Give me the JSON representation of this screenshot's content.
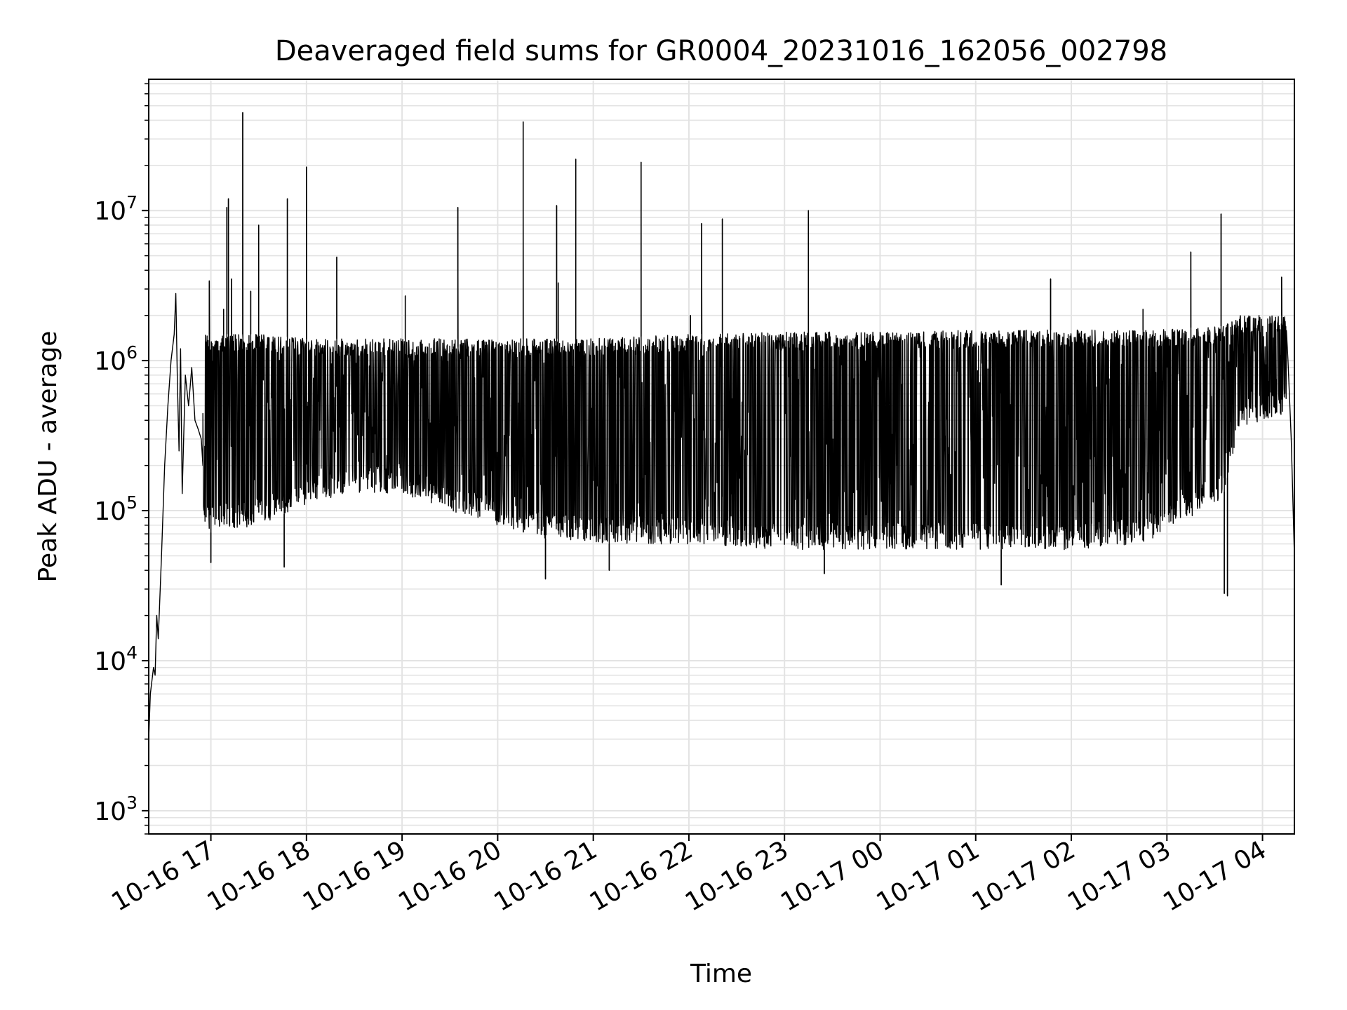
{
  "chart_data": {
    "type": "line",
    "title": "Deaveraged field sums for GR0004_20231016_162056_002798",
    "xlabel": "Time",
    "ylabel": "Peak ADU - average",
    "yscale": "log",
    "ylim": [
      700,
      75000000
    ],
    "xlim": [
      "2023-10-16T16:21",
      "2023-10-17T04:20"
    ],
    "grid": {
      "major": true,
      "minor_y": true
    },
    "line_color": "#000000",
    "grid_color": "#e3e3e3",
    "x_ticks": [
      {
        "time": "2023-10-16T17:00",
        "label": "10-16 17"
      },
      {
        "time": "2023-10-16T18:00",
        "label": "10-16 18"
      },
      {
        "time": "2023-10-16T19:00",
        "label": "10-16 19"
      },
      {
        "time": "2023-10-16T20:00",
        "label": "10-16 20"
      },
      {
        "time": "2023-10-16T21:00",
        "label": "10-16 21"
      },
      {
        "time": "2023-10-16T22:00",
        "label": "10-16 22"
      },
      {
        "time": "2023-10-16T23:00",
        "label": "10-16 23"
      },
      {
        "time": "2023-10-17T00:00",
        "label": "10-17 00"
      },
      {
        "time": "2023-10-17T01:00",
        "label": "10-17 01"
      },
      {
        "time": "2023-10-17T02:00",
        "label": "10-17 02"
      },
      {
        "time": "2023-10-17T03:00",
        "label": "10-17 03"
      },
      {
        "time": "2023-10-17T04:00",
        "label": "10-17 04"
      }
    ],
    "y_ticks": [
      {
        "value": 1000,
        "base": "10",
        "exp": "3"
      },
      {
        "value": 10000,
        "base": "10",
        "exp": "4"
      },
      {
        "value": 100000,
        "base": "10",
        "exp": "5"
      },
      {
        "value": 1000000,
        "base": "10",
        "exp": "6"
      },
      {
        "value": 10000000,
        "base": "10",
        "exp": "7"
      }
    ],
    "envelope": [
      {
        "time": "2023-10-16T16:55",
        "low": 70000,
        "high": 1500000
      },
      {
        "time": "2023-10-16T17:30",
        "low": 80000,
        "high": 1500000
      },
      {
        "time": "2023-10-16T18:00",
        "low": 110000,
        "high": 1400000
      },
      {
        "time": "2023-10-16T18:30",
        "low": 130000,
        "high": 1400000
      },
      {
        "time": "2023-10-16T19:00",
        "low": 130000,
        "high": 1400000
      },
      {
        "time": "2023-10-16T19:30",
        "low": 100000,
        "high": 1400000
      },
      {
        "time": "2023-10-16T20:00",
        "low": 80000,
        "high": 1400000
      },
      {
        "time": "2023-10-16T20:30",
        "low": 65000,
        "high": 1400000
      },
      {
        "time": "2023-10-16T21:00",
        "low": 60000,
        "high": 1400000
      },
      {
        "time": "2023-10-16T22:00",
        "low": 60000,
        "high": 1500000
      },
      {
        "time": "2023-10-16T23:00",
        "low": 55000,
        "high": 1550000
      },
      {
        "time": "2023-10-17T00:00",
        "low": 55000,
        "high": 1550000
      },
      {
        "time": "2023-10-17T01:00",
        "low": 55000,
        "high": 1600000
      },
      {
        "time": "2023-10-17T02:00",
        "low": 55000,
        "high": 1600000
      },
      {
        "time": "2023-10-17T02:45",
        "low": 60000,
        "high": 1600000
      },
      {
        "time": "2023-10-17T03:35",
        "low": 120000,
        "high": 1700000
      },
      {
        "time": "2023-10-17T03:45",
        "low": 350000,
        "high": 2000000
      },
      {
        "time": "2023-10-17T04:15",
        "low": 450000,
        "high": 2000000
      }
    ],
    "points": [
      {
        "time": "2023-10-16T16:21",
        "value": 3000
      },
      {
        "time": "2023-10-16T16:22",
        "value": 6000
      },
      {
        "time": "2023-10-16T16:24",
        "value": 9000
      },
      {
        "time": "2023-10-16T16:25",
        "value": 8000
      },
      {
        "time": "2023-10-16T16:26",
        "value": 20000
      },
      {
        "time": "2023-10-16T16:27",
        "value": 14000
      },
      {
        "time": "2023-10-16T16:29",
        "value": 50000
      },
      {
        "time": "2023-10-16T16:31",
        "value": 200000
      },
      {
        "time": "2023-10-16T16:33",
        "value": 500000
      },
      {
        "time": "2023-10-16T16:35",
        "value": 1000000
      },
      {
        "time": "2023-10-16T16:37",
        "value": 1500000
      },
      {
        "time": "2023-10-16T16:38",
        "value": 2800000
      },
      {
        "time": "2023-10-16T16:39",
        "value": 700000
      },
      {
        "time": "2023-10-16T16:40",
        "value": 250000
      },
      {
        "time": "2023-10-16T16:41",
        "value": 1200000
      },
      {
        "time": "2023-10-16T16:42",
        "value": 130000
      },
      {
        "time": "2023-10-16T16:44",
        "value": 800000
      },
      {
        "time": "2023-10-16T16:46",
        "value": 500000
      },
      {
        "time": "2023-10-16T16:48",
        "value": 900000
      },
      {
        "time": "2023-10-16T16:50",
        "value": 400000
      },
      {
        "time": "2023-10-16T16:52",
        "value": 350000
      },
      {
        "time": "2023-10-16T16:54",
        "value": 300000
      },
      {
        "time": "2023-10-16T16:55",
        "value": 200000
      }
    ],
    "spikes": [
      {
        "time": "2023-10-16T16:59",
        "value": 3400000
      },
      {
        "time": "2023-10-16T17:08",
        "value": 2200000
      },
      {
        "time": "2023-10-16T17:10",
        "value": 10500000
      },
      {
        "time": "2023-10-16T17:11",
        "value": 12000000
      },
      {
        "time": "2023-10-16T17:13",
        "value": 3500000
      },
      {
        "time": "2023-10-16T17:20",
        "value": 45000000
      },
      {
        "time": "2023-10-16T17:25",
        "value": 2900000
      },
      {
        "time": "2023-10-16T17:30",
        "value": 8000000
      },
      {
        "time": "2023-10-16T17:48",
        "value": 12000000
      },
      {
        "time": "2023-10-16T18:00",
        "value": 19500000
      },
      {
        "time": "2023-10-16T18:19",
        "value": 4900000
      },
      {
        "time": "2023-10-16T19:02",
        "value": 2700000
      },
      {
        "time": "2023-10-16T19:35",
        "value": 10500000
      },
      {
        "time": "2023-10-16T20:16",
        "value": 39000000
      },
      {
        "time": "2023-10-16T20:37",
        "value": 10800000
      },
      {
        "time": "2023-10-16T20:38",
        "value": 3300000
      },
      {
        "time": "2023-10-16T20:49",
        "value": 22000000
      },
      {
        "time": "2023-10-16T21:30",
        "value": 21000000
      },
      {
        "time": "2023-10-16T22:01",
        "value": 2000000
      },
      {
        "time": "2023-10-16T22:08",
        "value": 8200000
      },
      {
        "time": "2023-10-16T22:21",
        "value": 8800000
      },
      {
        "time": "2023-10-16T23:15",
        "value": 10000000
      },
      {
        "time": "2023-10-17T01:47",
        "value": 3500000
      },
      {
        "time": "2023-10-17T02:45",
        "value": 2200000
      },
      {
        "time": "2023-10-17T03:15",
        "value": 5300000
      },
      {
        "time": "2023-10-17T03:34",
        "value": 9500000
      },
      {
        "time": "2023-10-17T04:12",
        "value": 3600000
      }
    ],
    "dips": [
      {
        "time": "2023-10-16T17:00",
        "value": 45000
      },
      {
        "time": "2023-10-16T17:46",
        "value": 42000
      },
      {
        "time": "2023-10-16T20:30",
        "value": 35000
      },
      {
        "time": "2023-10-16T21:10",
        "value": 40000
      },
      {
        "time": "2023-10-16T23:25",
        "value": 38000
      },
      {
        "time": "2023-10-17T01:16",
        "value": 32000
      },
      {
        "time": "2023-10-17T03:36",
        "value": 28000
      },
      {
        "time": "2023-10-17T03:38",
        "value": 27000
      }
    ],
    "tail": [
      {
        "time": "2023-10-17T04:16",
        "value": 1000000
      },
      {
        "time": "2023-10-17T04:18",
        "value": 300000
      },
      {
        "time": "2023-10-17T04:20",
        "value": 50000
      }
    ]
  }
}
